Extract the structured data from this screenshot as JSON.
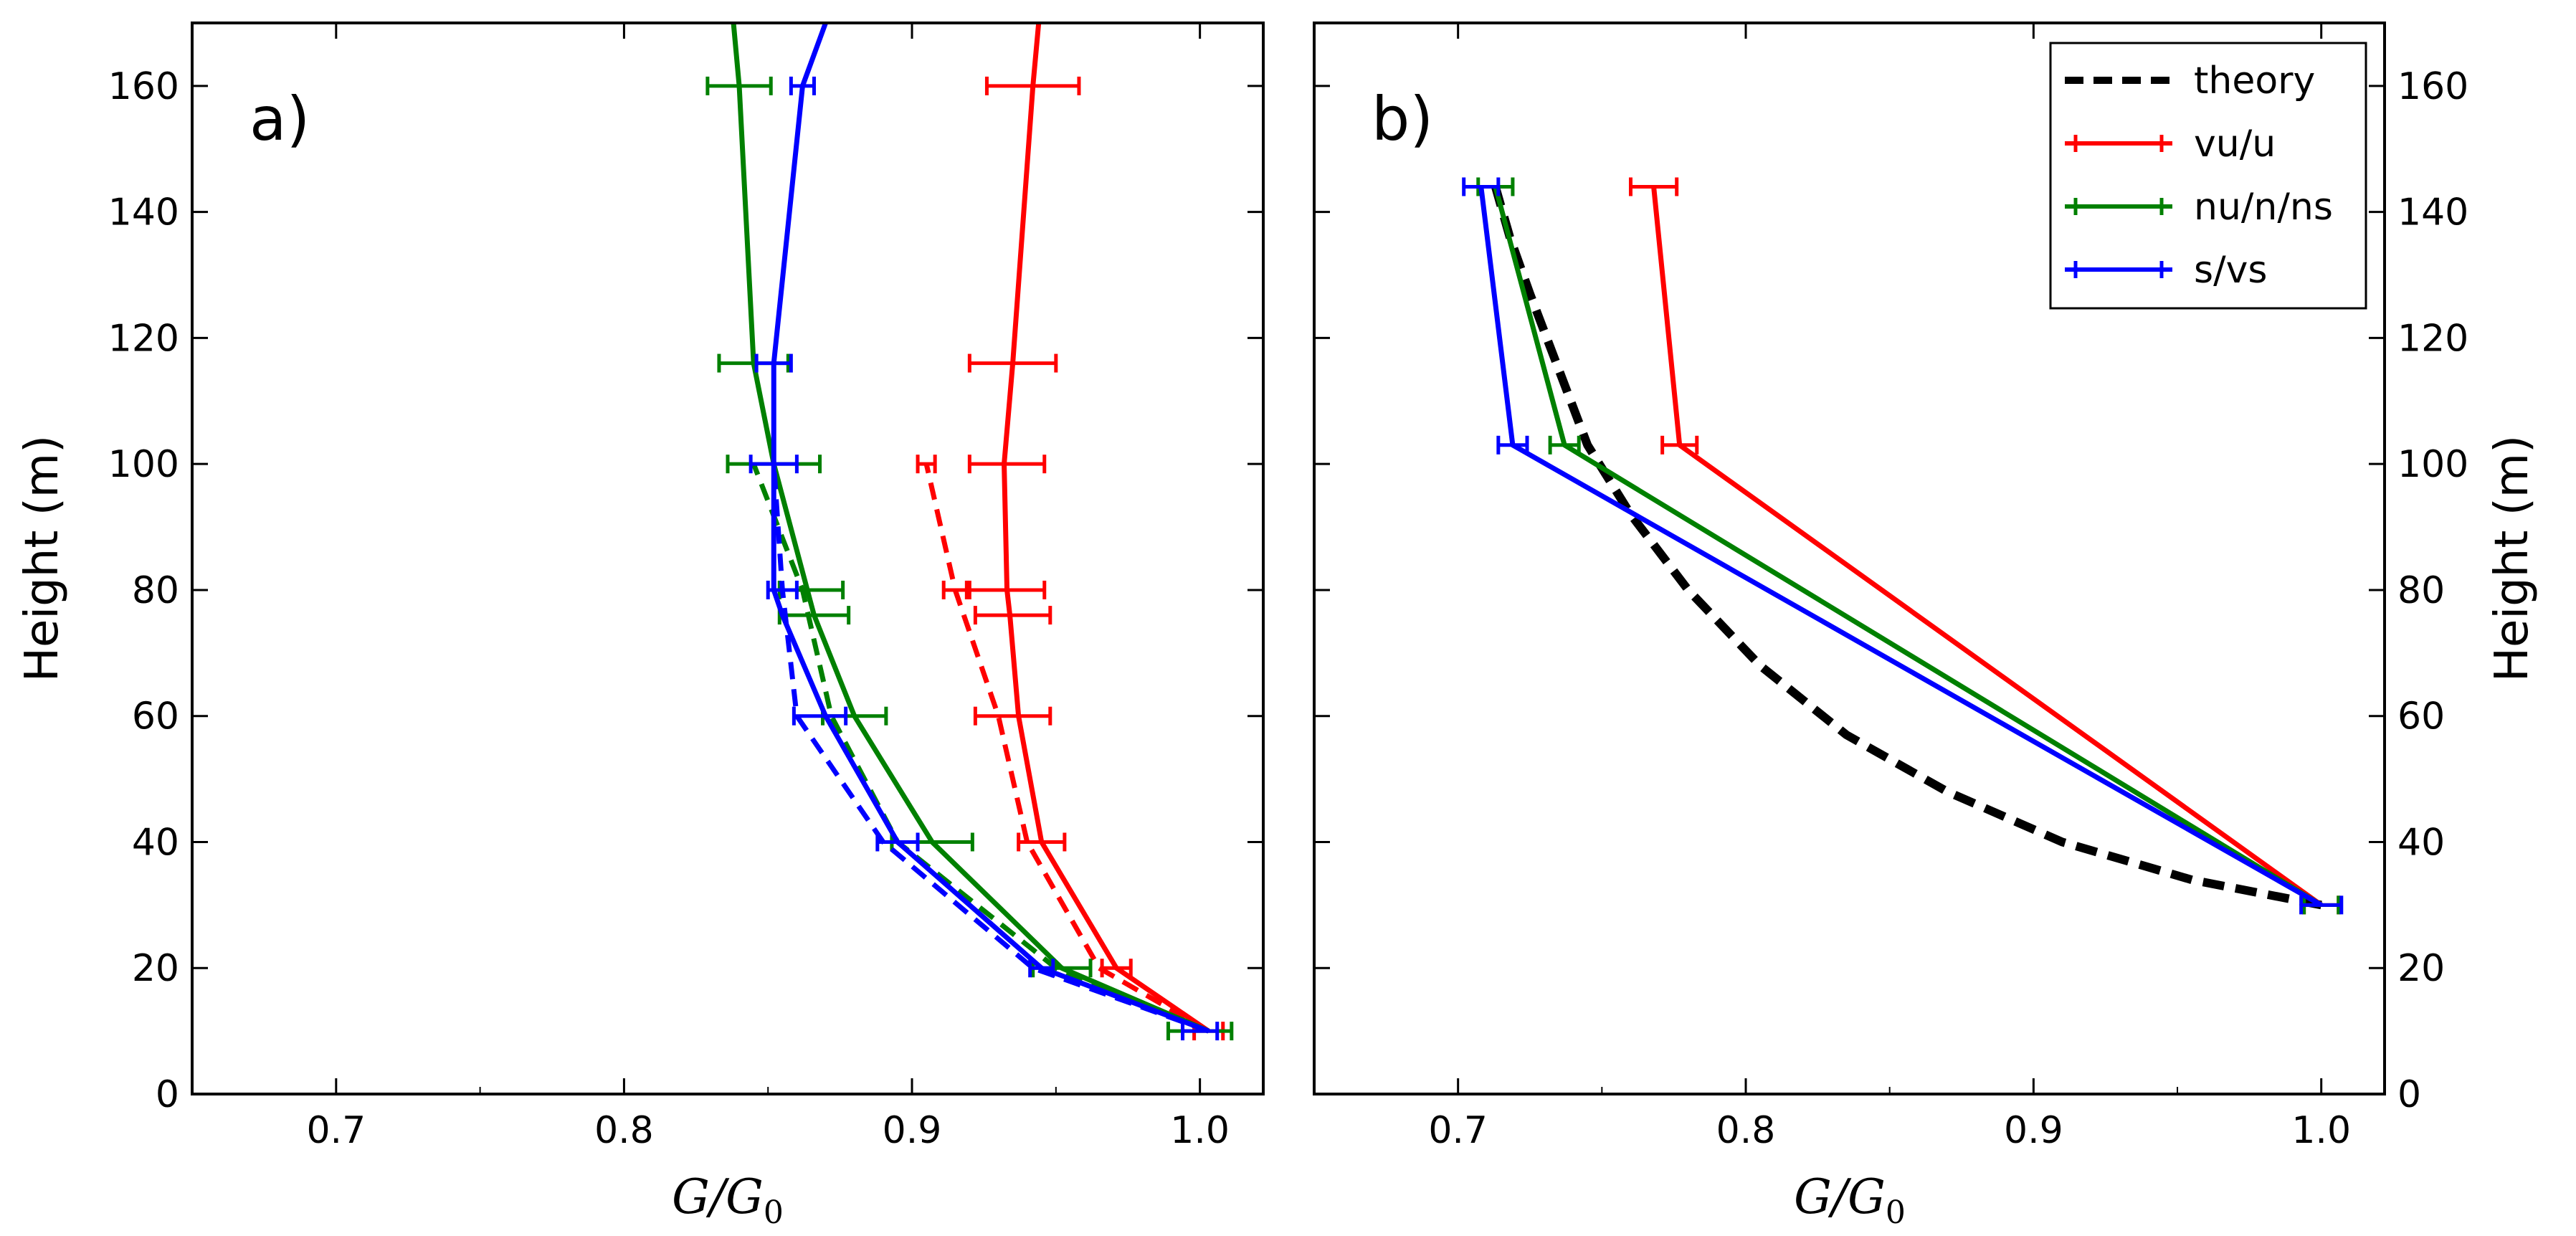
{
  "chart_data": [
    {
      "panel": "a)",
      "type": "line",
      "xlabel": "G/G0",
      "ylabel": "Height (m)",
      "xlim": [
        0.65,
        1.022
      ],
      "ylim": [
        0,
        170
      ],
      "xticks": [
        "0.7",
        "0.8",
        "0.9",
        "1.0"
      ],
      "yticks": [
        "0",
        "20",
        "40",
        "60",
        "80",
        "100",
        "120",
        "140",
        "160"
      ],
      "ytick_side": "left",
      "grid": false,
      "series": [
        {
          "color": "#ff0000",
          "style": "solid",
          "points": [
            [
              1.003,
              10
            ],
            [
              0.971,
              20
            ],
            [
              0.945,
              40
            ],
            [
              0.937,
              60
            ],
            [
              0.934,
              76
            ],
            [
              0.933,
              80
            ],
            [
              0.932,
              100
            ],
            [
              0.935,
              116
            ],
            [
              0.942,
              160
            ],
            [
              0.944,
              170
            ]
          ],
          "errors": [
            [
              0.945,
              0.008,
              40
            ],
            [
              0.935,
              0.013,
              60
            ],
            [
              0.935,
              0.013,
              76
            ],
            [
              0.933,
              0.013,
              80
            ],
            [
              0.933,
              0.013,
              100
            ],
            [
              0.935,
              0.015,
              116
            ],
            [
              0.942,
              0.016,
              160
            ],
            [
              0.971,
              0.005,
              20
            ],
            [
              1.003,
              0.005,
              10
            ]
          ]
        },
        {
          "color": "#ff0000",
          "style": "dashed",
          "points": [
            [
              1.003,
              10
            ],
            [
              0.965,
              20
            ],
            [
              0.94,
              40
            ],
            [
              0.93,
              60
            ],
            [
              0.915,
              80
            ],
            [
              0.905,
              100
            ]
          ],
          "errors": [
            [
              0.905,
              0.003,
              100
            ],
            [
              0.915,
              0.004,
              80
            ]
          ]
        },
        {
          "color": "#008000",
          "style": "solid",
          "points": [
            [
              1.003,
              10
            ],
            [
              0.952,
              20
            ],
            [
              0.907,
              40
            ],
            [
              0.88,
              60
            ],
            [
              0.866,
              76
            ],
            [
              0.852,
              100
            ],
            [
              0.845,
              116
            ],
            [
              0.84,
              160
            ],
            [
              0.838,
              170
            ]
          ],
          "errors": [
            [
              0.907,
              0.014,
              40
            ],
            [
              0.88,
              0.011,
              60
            ],
            [
              0.866,
              0.012,
              76
            ],
            [
              0.865,
              0.011,
              80
            ],
            [
              0.852,
              0.016,
              100
            ],
            [
              0.845,
              0.012,
              116
            ],
            [
              0.84,
              0.011,
              160
            ],
            [
              0.952,
              0.01,
              20
            ],
            [
              1.0,
              0.011,
              10
            ]
          ]
        },
        {
          "color": "#008000",
          "style": "dashed",
          "points": [
            [
              1.003,
              10
            ],
            [
              0.95,
              20
            ],
            [
              0.895,
              40
            ],
            [
              0.872,
              60
            ],
            [
              0.862,
              80
            ],
            [
              0.845,
              100
            ]
          ]
        },
        {
          "color": "#0000ff",
          "style": "solid",
          "points": [
            [
              1.003,
              10
            ],
            [
              0.945,
              20
            ],
            [
              0.895,
              40
            ],
            [
              0.87,
              60
            ],
            [
              0.855,
              76
            ],
            [
              0.852,
              80
            ],
            [
              0.852,
              100
            ],
            [
              0.852,
              116
            ],
            [
              0.862,
              160
            ],
            [
              0.87,
              170
            ]
          ],
          "errors": [
            [
              0.895,
              0.007,
              40
            ],
            [
              0.868,
              0.009,
              60
            ],
            [
              0.855,
              0.005,
              80
            ],
            [
              0.852,
              0.008,
              100
            ],
            [
              0.852,
              0.006,
              116
            ],
            [
              0.862,
              0.004,
              160
            ],
            [
              0.945,
              0.004,
              20
            ],
            [
              1.0,
              0.006,
              10
            ]
          ]
        },
        {
          "color": "#0000ff",
          "style": "dashed",
          "points": [
            [
              1.003,
              10
            ],
            [
              0.942,
              20
            ],
            [
              0.89,
              40
            ],
            [
              0.86,
              60
            ],
            [
              0.855,
              80
            ],
            [
              0.852,
              100
            ]
          ]
        }
      ]
    },
    {
      "panel": "b)",
      "type": "line",
      "xlabel": "G/G0",
      "ylabel": "Height (m)",
      "xlim": [
        0.65,
        1.022
      ],
      "ylim": [
        0,
        170
      ],
      "xticks": [
        "0.7",
        "0.8",
        "0.9",
        "1.0"
      ],
      "yticks": [
        "0",
        "20",
        "40",
        "60",
        "80",
        "100",
        "120",
        "140",
        "160"
      ],
      "ytick_side": "right",
      "grid": false,
      "legend": {
        "placement": "top-right",
        "entries": [
          "theory",
          "vu/u",
          "nu/n/ns",
          "s/vs"
        ]
      },
      "series": [
        {
          "name": "theory",
          "color": "#000000",
          "style": "dashed",
          "points": [
            [
              1.0,
              30
            ],
            [
              0.955,
              34
            ],
            [
              0.91,
              40
            ],
            [
              0.87,
              48
            ],
            [
              0.835,
              57
            ],
            [
              0.805,
              68
            ],
            [
              0.78,
              80
            ],
            [
              0.76,
              92
            ],
            [
              0.745,
              103
            ],
            [
              0.735,
              115
            ],
            [
              0.725,
              127
            ],
            [
              0.718,
              136
            ],
            [
              0.713,
              144
            ]
          ]
        },
        {
          "name": "vu/u",
          "color": "#ff0000",
          "style": "solid",
          "points": [
            [
              1.0,
              30
            ],
            [
              0.777,
              103
            ],
            [
              0.768,
              144
            ]
          ],
          "errors": [
            [
              1.0,
              0.006,
              30
            ],
            [
              0.777,
              0.006,
              103
            ],
            [
              0.768,
              0.008,
              144
            ]
          ]
        },
        {
          "name": "nu/n/ns",
          "color": "#008000",
          "style": "solid",
          "points": [
            [
              1.0,
              30
            ],
            [
              0.737,
              103
            ],
            [
              0.713,
              144
            ]
          ],
          "errors": [
            [
              1.0,
              0.006,
              30
            ],
            [
              0.737,
              0.005,
              103
            ],
            [
              0.713,
              0.006,
              144
            ]
          ]
        },
        {
          "name": "s/vs",
          "color": "#0000ff",
          "style": "solid",
          "points": [
            [
              1.0,
              30
            ],
            [
              0.719,
              103
            ],
            [
              0.708,
              144
            ]
          ],
          "errors": [
            [
              1.0,
              0.007,
              30
            ],
            [
              0.719,
              0.005,
              103
            ],
            [
              0.708,
              0.006,
              144
            ]
          ]
        }
      ]
    }
  ]
}
